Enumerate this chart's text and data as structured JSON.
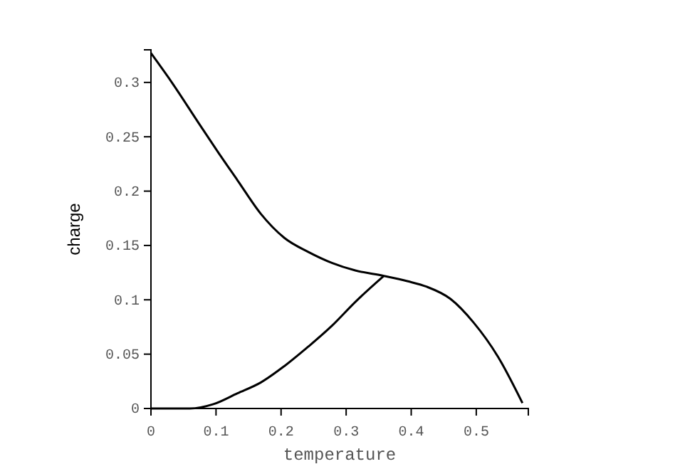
{
  "chart_data": {
    "type": "line",
    "xlabel": "temperature",
    "ylabel": "charge",
    "xlim": [
      0,
      0.58
    ],
    "ylim": [
      0,
      0.33
    ],
    "xticks": [
      0,
      0.1,
      0.2,
      0.3,
      0.4,
      0.5
    ],
    "yticks": [
      0,
      0.05,
      0.1,
      0.15,
      0.2,
      0.25,
      0.3
    ],
    "grid": false,
    "marker": "none",
    "line_style": "solid",
    "series": [
      {
        "color": "#000000",
        "x": [
          0,
          0.031,
          0.074,
          0.103,
          0.133,
          0.169,
          0.205,
          0.242,
          0.278,
          0.314,
          0.358,
          0.395,
          0.424,
          0.46,
          0.496,
          0.533,
          0.571
        ],
        "values": [
          0.327,
          0.301,
          0.262,
          0.236,
          0.21,
          0.179,
          0.157,
          0.144,
          0.134,
          0.127,
          0.122,
          0.117,
          0.112,
          0.101,
          0.079,
          0.048,
          0.005
        ]
      },
      {
        "color": "#000000",
        "x": [
          0,
          0.06,
          0.096,
          0.133,
          0.169,
          0.205,
          0.242,
          0.278,
          0.314,
          0.358
        ],
        "values": [
          0,
          0,
          0.004,
          0.014,
          0.024,
          0.039,
          0.057,
          0.076,
          0.098,
          0.122
        ]
      }
    ]
  }
}
